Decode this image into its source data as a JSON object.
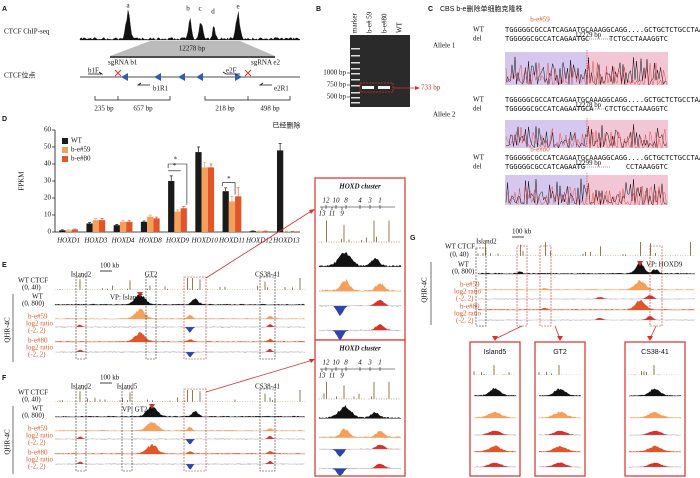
{
  "panel_labels": [
    "A",
    "B",
    "C",
    "D",
    "E",
    "F",
    "G"
  ],
  "panel_a": {
    "track_label": "CTCF ChIP-seq",
    "peaks": [
      "a",
      "b",
      "c",
      "d",
      "e"
    ],
    "span": "12278 bp",
    "site_label": "CTCF位点",
    "primers": [
      "b1F",
      "sgRNA b1",
      "b1R1",
      "e2F",
      "sgRNA e2",
      "e2R1"
    ],
    "distances": [
      "235 bp",
      "657 bp",
      "218 bp",
      "498 bp"
    ]
  },
  "panel_b": {
    "lanes": [
      "marker",
      "b-e# 59",
      "b-e#80",
      "WT"
    ],
    "ladder": [
      "1000 bp",
      "750 bp",
      "500 bp"
    ],
    "band": "733 bp"
  },
  "panel_c": {
    "title": "CBS b-e删除单细胞克隆株",
    "clones": [
      "b-e#59",
      "b-e#80"
    ],
    "alleles": [
      "Allele 1",
      "Allele 2"
    ],
    "blocks": [
      {
        "wt_label": "WT",
        "del_label": "del",
        "wt": "TGGGGGCGCCATCAGAATGCAAAGGCAGG....GCTGCTCTGCCTAAAGGTC",
        "del": "TGGGGGCGCCATCAGAATGC",
        "gap": "12279 bp",
        "del_tail": "TCTGCCTAAAGGTC"
      },
      {
        "wt_label": "WT",
        "del_label": "del",
        "wt": "TGGGGGCGCCATCAGAATGCAAAGGCAGG....GCTGCTCTGCCTAAAGGTC",
        "del": "TGGGGGCGCCATCAGAATGCA",
        "gap": "12278 bp",
        "del_tail": "CTCTGCCTAAAGGTC"
      },
      {
        "wt_label": "WT",
        "del_label": "del",
        "wt": "TGGGGGCGCCATCAGAATGCAAAGGCAGG....GCTGCTCTGCCTAAAGGTC",
        "del": "TGGGGGCGCCATCAGAATG",
        "gap": "12299 bp",
        "del_tail": "CCTAAAGGTC"
      }
    ]
  },
  "chart_data": {
    "type": "bar",
    "y_label": "FPKM",
    "categories": [
      "HOXD1",
      "HOXD3",
      "HOXD4",
      "HOXD8",
      "HOXD9",
      "HOXD10",
      "HOXD11",
      "HOXD12",
      "HOXD13"
    ],
    "series": [
      {
        "name": "WT",
        "color": "#1a1a1a",
        "values": [
          1,
          5,
          4,
          6,
          30,
          47,
          24,
          0.5,
          48
        ],
        "errors": [
          0.3,
          0.5,
          0.5,
          0.5,
          3,
          3,
          2,
          0.2,
          4
        ]
      },
      {
        "name": "b-e#59",
        "color": "#f5a05a",
        "values": [
          1,
          7,
          6,
          9,
          12,
          38,
          18,
          0.5,
          0.3
        ],
        "errors": [
          0.3,
          1,
          0.8,
          1,
          1,
          3,
          3,
          0.1,
          0.1
        ]
      },
      {
        "name": "b-e#80",
        "color": "#e0562a",
        "values": [
          1.5,
          7,
          6,
          8,
          14,
          38,
          21,
          0.5,
          0.3
        ],
        "errors": [
          0.3,
          1,
          0.8,
          0.8,
          1,
          2,
          5,
          0.1,
          0.1
        ]
      }
    ],
    "ylim": [
      0,
      60
    ],
    "yticks": [
      0,
      10,
      20,
      30,
      40,
      50,
      60
    ],
    "annotations": [
      "*",
      "*",
      "*",
      "已经删除"
    ]
  },
  "panel_e": {
    "tracks": [
      "WT CTCF",
      "(0, 40)",
      "WT",
      "(0, 800)",
      "b-e#59",
      "log2 ratio",
      "(-2, 2)",
      "b-e#80",
      "log2 ratio",
      "(-2, 2)"
    ],
    "side": "QHR-4C",
    "scale": "100 kb",
    "regions": [
      "Island2",
      "GT2",
      "CS38-41"
    ],
    "viewpoint": "VP: Island5"
  },
  "panel_f": {
    "tracks": [
      "WT CTCF",
      "(0, 40)",
      "WT",
      "(0, 800)",
      "b-e#59",
      "log2 ratio",
      "(-2, 2)",
      "b-e#80",
      "log2 ratio",
      "(-2, 2)"
    ],
    "side": "QHR-4C",
    "scale": "100 kb",
    "regions": [
      "Island2",
      "Island5",
      "CS38-41"
    ],
    "viewpoint": "VP: GT2"
  },
  "insets": [
    {
      "title": "HOXD cluster",
      "genes_top": [
        "12",
        "10",
        "8",
        "4",
        "3",
        "1"
      ],
      "genes_bottom": [
        "13",
        "11",
        "9"
      ]
    },
    {
      "title": "HOXD cluster",
      "genes_top": [
        "12",
        "10",
        "8",
        "4",
        "3",
        "1"
      ],
      "genes_bottom": [
        "13",
        "11",
        "9"
      ]
    }
  ],
  "panel_g": {
    "tracks": [
      "WT CTCF",
      "(0, 40)",
      "WT",
      "(0, 800)",
      "b-e#59",
      "log2 ratio",
      "(-2, 2)",
      "b-e#80",
      "log2 ratio",
      "(-2, 2)"
    ],
    "side": "QHR-4C",
    "scale": "100 kb",
    "region": "Island2",
    "viewpoint": "VP: HOXD9",
    "zooms": [
      "Island5",
      "GT2",
      "CS38-41"
    ]
  }
}
